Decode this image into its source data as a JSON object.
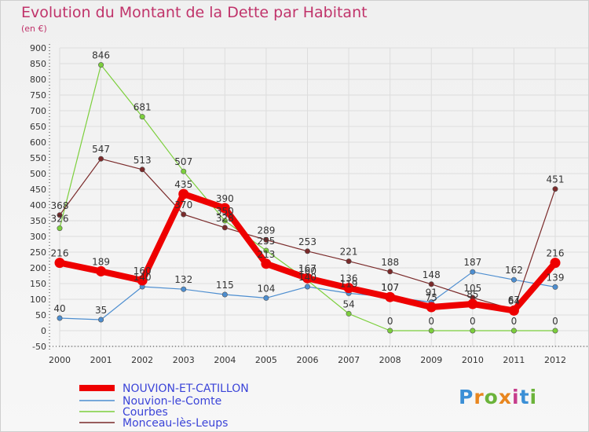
{
  "header": {
    "title": "Evolution du Montant de la Dette par Habitant",
    "subtitle": "(en €)"
  },
  "logo": {
    "text": "Proxiti",
    "colors": [
      "#3b8fd6",
      "#e8861f",
      "#6bb33a",
      "#e8861f",
      "#c63d8c",
      "#3b8fd6",
      "#6bb33a"
    ]
  },
  "colors": {
    "title": "#c0336a",
    "legend_text": "#3b44d8",
    "grid": "#dddddd"
  },
  "chart_data": {
    "type": "line",
    "title": "Evolution du Montant de la Dette par Habitant",
    "subtitle": "(en €)",
    "xlabel": "",
    "ylabel": "",
    "x": [
      "2000",
      "2001",
      "2002",
      "2003",
      "2004",
      "2005",
      "2006",
      "2007",
      "2008",
      "2009",
      "2010",
      "2011",
      "2012"
    ],
    "ylim": [
      -50,
      900
    ],
    "yticks": [
      -50,
      0,
      50,
      100,
      150,
      200,
      250,
      300,
      350,
      400,
      450,
      500,
      550,
      600,
      650,
      700,
      750,
      800,
      850,
      900
    ],
    "grid": true,
    "legend_position": "bottom-left",
    "series": [
      {
        "name": "NOUVION-ET-CATILLON",
        "color": "#ee0000",
        "values": [
          216,
          189,
          160,
          435,
          390,
          213,
          167,
          136,
          107,
          75,
          85,
          64,
          216
        ],
        "labels": [
          "216",
          "189",
          "160",
          "435",
          "390",
          "213",
          "167",
          "136",
          "107",
          "75",
          "85",
          "64",
          "216"
        ],
        "emphasis": true
      },
      {
        "name": "Nouvion-le-Comte",
        "color": "#4d8ed0",
        "values": [
          40,
          35,
          140,
          132,
          115,
          104,
          140,
          119,
          107,
          91,
          187,
          162,
          139
        ],
        "labels": [
          "40",
          "35",
          "140",
          "132",
          "115",
          "104",
          "140",
          "119",
          "107",
          "91",
          "187",
          "162",
          "139"
        ]
      },
      {
        "name": "Courbes",
        "color": "#7ccf3c",
        "values": [
          326,
          846,
          681,
          507,
          350,
          255,
          160,
          54,
          0,
          0,
          0,
          0,
          0
        ],
        "labels": [
          "326",
          "846",
          "681",
          "507",
          "350",
          "255",
          "160",
          "54",
          "0",
          "0",
          "0",
          "0",
          "0"
        ]
      },
      {
        "name": "Monceau-lès-Leups",
        "color": "#7a2a2a",
        "values": [
          368,
          547,
          513,
          370,
          328,
          289,
          253,
          221,
          188,
          148,
          105,
          67,
          451
        ],
        "labels": [
          "368",
          "547",
          "513",
          "370",
          "328",
          "289",
          "253",
          "221",
          "188",
          "148",
          "105",
          "67",
          "451"
        ]
      }
    ]
  }
}
